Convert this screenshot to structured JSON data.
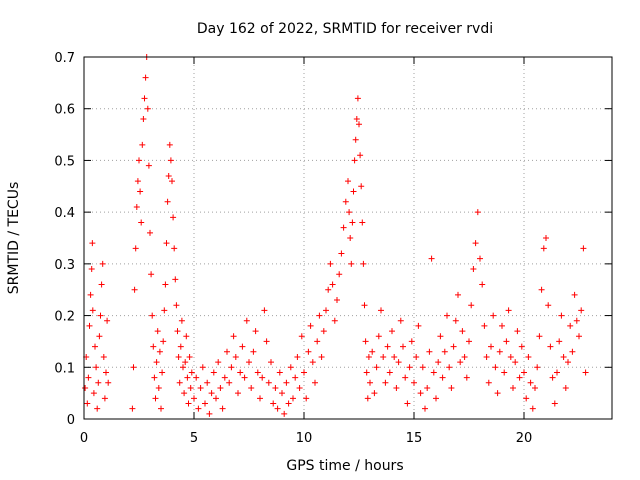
{
  "chart_data": {
    "type": "scatter",
    "title": "Day 162 of 2022, SRMTID for receiver rvdi",
    "xlabel": "GPS time / hours",
    "ylabel": "SRMTID / TECUs",
    "xlim": [
      0,
      24
    ],
    "ylim": [
      0,
      0.7
    ],
    "xticks": [
      0,
      5,
      10,
      15,
      20
    ],
    "xtick_labels": [
      "0",
      "5",
      "10",
      "15",
      "20"
    ],
    "yticks": [
      0,
      0.1,
      0.2,
      0.3,
      0.4,
      0.5,
      0.6,
      0.7
    ],
    "ytick_labels": [
      "0",
      "0.1",
      "0.2",
      "0.3",
      "0.4",
      "0.5",
      "0.6",
      "0.7"
    ],
    "grid": true,
    "marker": "+",
    "color": "#ff0000",
    "series": [
      {
        "name": "SRMTID",
        "points": [
          [
            0.05,
            0.06
          ],
          [
            0.1,
            0.12
          ],
          [
            0.15,
            0.03
          ],
          [
            0.2,
            0.08
          ],
          [
            0.25,
            0.18
          ],
          [
            0.3,
            0.24
          ],
          [
            0.35,
            0.29
          ],
          [
            0.38,
            0.34
          ],
          [
            0.4,
            0.21
          ],
          [
            0.45,
            0.05
          ],
          [
            0.5,
            0.14
          ],
          [
            0.55,
            0.1
          ],
          [
            0.6,
            0.02
          ],
          [
            0.65,
            0.07
          ],
          [
            0.7,
            0.16
          ],
          [
            0.75,
            0.2
          ],
          [
            0.8,
            0.26
          ],
          [
            0.85,
            0.3
          ],
          [
            0.9,
            0.12
          ],
          [
            0.95,
            0.04
          ],
          [
            1.0,
            0.09
          ],
          [
            1.05,
            0.19
          ],
          [
            1.1,
            0.07
          ],
          [
            2.2,
            0.02
          ],
          [
            2.25,
            0.1
          ],
          [
            2.3,
            0.25
          ],
          [
            2.35,
            0.33
          ],
          [
            2.4,
            0.41
          ],
          [
            2.45,
            0.46
          ],
          [
            2.5,
            0.5
          ],
          [
            2.55,
            0.44
          ],
          [
            2.6,
            0.38
          ],
          [
            2.65,
            0.53
          ],
          [
            2.7,
            0.58
          ],
          [
            2.75,
            0.62
          ],
          [
            2.8,
            0.66
          ],
          [
            2.85,
            0.7
          ],
          [
            2.9,
            0.6
          ],
          [
            2.95,
            0.49
          ],
          [
            3.0,
            0.36
          ],
          [
            3.05,
            0.28
          ],
          [
            3.1,
            0.2
          ],
          [
            3.15,
            0.14
          ],
          [
            3.2,
            0.08
          ],
          [
            3.25,
            0.04
          ],
          [
            3.3,
            0.11
          ],
          [
            3.35,
            0.17
          ],
          [
            3.4,
            0.06
          ],
          [
            3.45,
            0.13
          ],
          [
            3.5,
            0.02
          ],
          [
            3.55,
            0.09
          ],
          [
            3.6,
            0.15
          ],
          [
            3.65,
            0.21
          ],
          [
            3.7,
            0.26
          ],
          [
            3.75,
            0.34
          ],
          [
            3.8,
            0.42
          ],
          [
            3.85,
            0.47
          ],
          [
            3.9,
            0.53
          ],
          [
            3.95,
            0.5
          ],
          [
            4.0,
            0.46
          ],
          [
            4.05,
            0.39
          ],
          [
            4.1,
            0.33
          ],
          [
            4.15,
            0.27
          ],
          [
            4.2,
            0.22
          ],
          [
            4.25,
            0.17
          ],
          [
            4.3,
            0.12
          ],
          [
            4.35,
            0.07
          ],
          [
            4.4,
            0.14
          ],
          [
            4.45,
            0.19
          ],
          [
            4.5,
            0.1
          ],
          [
            4.55,
            0.05
          ],
          [
            4.6,
            0.11
          ],
          [
            4.65,
            0.16
          ],
          [
            4.7,
            0.08
          ],
          [
            4.75,
            0.03
          ],
          [
            4.8,
            0.12
          ],
          [
            4.85,
            0.06
          ],
          [
            4.9,
            0.09
          ],
          [
            5.0,
            0.04
          ],
          [
            5.1,
            0.08
          ],
          [
            5.2,
            0.02
          ],
          [
            5.3,
            0.06
          ],
          [
            5.4,
            0.1
          ],
          [
            5.5,
            0.03
          ],
          [
            5.6,
            0.07
          ],
          [
            5.7,
            0.01
          ],
          [
            5.8,
            0.05
          ],
          [
            5.9,
            0.09
          ],
          [
            6.0,
            0.04
          ],
          [
            6.1,
            0.11
          ],
          [
            6.2,
            0.06
          ],
          [
            6.3,
            0.02
          ],
          [
            6.4,
            0.08
          ],
          [
            6.5,
            0.13
          ],
          [
            6.6,
            0.07
          ],
          [
            6.7,
            0.1
          ],
          [
            6.8,
            0.16
          ],
          [
            6.9,
            0.12
          ],
          [
            7.0,
            0.05
          ],
          [
            7.1,
            0.09
          ],
          [
            7.2,
            0.14
          ],
          [
            7.3,
            0.08
          ],
          [
            7.4,
            0.19
          ],
          [
            7.5,
            0.11
          ],
          [
            7.6,
            0.06
          ],
          [
            7.7,
            0.13
          ],
          [
            7.8,
            0.17
          ],
          [
            7.9,
            0.09
          ],
          [
            8.0,
            0.04
          ],
          [
            8.1,
            0.08
          ],
          [
            8.2,
            0.21
          ],
          [
            8.3,
            0.15
          ],
          [
            8.4,
            0.07
          ],
          [
            8.5,
            0.11
          ],
          [
            8.6,
            0.03
          ],
          [
            8.7,
            0.06
          ],
          [
            8.8,
            0.02
          ],
          [
            8.9,
            0.09
          ],
          [
            9.0,
            0.05
          ],
          [
            9.1,
            0.01
          ],
          [
            9.2,
            0.07
          ],
          [
            9.3,
            0.03
          ],
          [
            9.4,
            0.1
          ],
          [
            9.5,
            0.04
          ],
          [
            9.6,
            0.08
          ],
          [
            9.7,
            0.12
          ],
          [
            9.8,
            0.06
          ],
          [
            9.9,
            0.16
          ],
          [
            10.0,
            0.09
          ],
          [
            10.1,
            0.04
          ],
          [
            10.2,
            0.13
          ],
          [
            10.3,
            0.18
          ],
          [
            10.4,
            0.11
          ],
          [
            10.5,
            0.07
          ],
          [
            10.6,
            0.15
          ],
          [
            10.7,
            0.2
          ],
          [
            10.8,
            0.12
          ],
          [
            10.9,
            0.17
          ],
          [
            11.0,
            0.21
          ],
          [
            11.1,
            0.25
          ],
          [
            11.2,
            0.3
          ],
          [
            11.3,
            0.26
          ],
          [
            11.4,
            0.19
          ],
          [
            11.5,
            0.23
          ],
          [
            11.6,
            0.28
          ],
          [
            11.7,
            0.32
          ],
          [
            11.8,
            0.37
          ],
          [
            11.9,
            0.42
          ],
          [
            12.0,
            0.46
          ],
          [
            12.05,
            0.4
          ],
          [
            12.1,
            0.35
          ],
          [
            12.15,
            0.3
          ],
          [
            12.2,
            0.38
          ],
          [
            12.25,
            0.44
          ],
          [
            12.3,
            0.5
          ],
          [
            12.35,
            0.54
          ],
          [
            12.4,
            0.58
          ],
          [
            12.45,
            0.62
          ],
          [
            12.5,
            0.57
          ],
          [
            12.55,
            0.51
          ],
          [
            12.6,
            0.45
          ],
          [
            12.65,
            0.38
          ],
          [
            12.7,
            0.3
          ],
          [
            12.75,
            0.22
          ],
          [
            12.8,
            0.15
          ],
          [
            12.85,
            0.09
          ],
          [
            12.9,
            0.04
          ],
          [
            12.95,
            0.12
          ],
          [
            13.0,
            0.07
          ],
          [
            13.1,
            0.13
          ],
          [
            13.2,
            0.05
          ],
          [
            13.3,
            0.1
          ],
          [
            13.4,
            0.16
          ],
          [
            13.5,
            0.21
          ],
          [
            13.6,
            0.12
          ],
          [
            13.7,
            0.07
          ],
          [
            13.8,
            0.14
          ],
          [
            13.9,
            0.09
          ],
          [
            14.0,
            0.17
          ],
          [
            14.1,
            0.12
          ],
          [
            14.2,
            0.06
          ],
          [
            14.3,
            0.11
          ],
          [
            14.4,
            0.19
          ],
          [
            14.5,
            0.14
          ],
          [
            14.6,
            0.08
          ],
          [
            14.7,
            0.03
          ],
          [
            14.8,
            0.1
          ],
          [
            14.9,
            0.15
          ],
          [
            15.0,
            0.07
          ],
          [
            15.1,
            0.12
          ],
          [
            15.2,
            0.18
          ],
          [
            15.3,
            0.05
          ],
          [
            15.4,
            0.1
          ],
          [
            15.5,
            0.02
          ],
          [
            15.6,
            0.06
          ],
          [
            15.7,
            0.13
          ],
          [
            15.8,
            0.31
          ],
          [
            15.9,
            0.09
          ],
          [
            16.0,
            0.04
          ],
          [
            16.1,
            0.11
          ],
          [
            16.2,
            0.16
          ],
          [
            16.3,
            0.08
          ],
          [
            16.4,
            0.13
          ],
          [
            16.5,
            0.2
          ],
          [
            16.6,
            0.1
          ],
          [
            16.7,
            0.06
          ],
          [
            16.8,
            0.14
          ],
          [
            16.9,
            0.19
          ],
          [
            17.0,
            0.24
          ],
          [
            17.1,
            0.11
          ],
          [
            17.2,
            0.17
          ],
          [
            17.3,
            0.12
          ],
          [
            17.4,
            0.08
          ],
          [
            17.5,
            0.15
          ],
          [
            17.6,
            0.22
          ],
          [
            17.7,
            0.29
          ],
          [
            17.8,
            0.34
          ],
          [
            17.9,
            0.4
          ],
          [
            18.0,
            0.31
          ],
          [
            18.1,
            0.26
          ],
          [
            18.2,
            0.18
          ],
          [
            18.3,
            0.12
          ],
          [
            18.4,
            0.07
          ],
          [
            18.5,
            0.14
          ],
          [
            18.6,
            0.2
          ],
          [
            18.7,
            0.1
          ],
          [
            18.8,
            0.05
          ],
          [
            18.9,
            0.13
          ],
          [
            19.0,
            0.18
          ],
          [
            19.1,
            0.09
          ],
          [
            19.2,
            0.15
          ],
          [
            19.3,
            0.21
          ],
          [
            19.4,
            0.12
          ],
          [
            19.5,
            0.06
          ],
          [
            19.6,
            0.11
          ],
          [
            19.7,
            0.17
          ],
          [
            19.8,
            0.08
          ],
          [
            19.9,
            0.14
          ],
          [
            20.0,
            0.09
          ],
          [
            20.1,
            0.04
          ],
          [
            20.2,
            0.12
          ],
          [
            20.3,
            0.07
          ],
          [
            20.4,
            0.02
          ],
          [
            20.5,
            0.06
          ],
          [
            20.6,
            0.1
          ],
          [
            20.7,
            0.16
          ],
          [
            20.8,
            0.25
          ],
          [
            20.9,
            0.33
          ],
          [
            21.0,
            0.35
          ],
          [
            21.1,
            0.22
          ],
          [
            21.2,
            0.14
          ],
          [
            21.3,
            0.08
          ],
          [
            21.4,
            0.03
          ],
          [
            21.5,
            0.09
          ],
          [
            21.6,
            0.15
          ],
          [
            21.7,
            0.2
          ],
          [
            21.8,
            0.12
          ],
          [
            21.9,
            0.06
          ],
          [
            22.0,
            0.11
          ],
          [
            22.1,
            0.18
          ],
          [
            22.2,
            0.13
          ],
          [
            22.3,
            0.24
          ],
          [
            22.4,
            0.19
          ],
          [
            22.5,
            0.16
          ],
          [
            22.6,
            0.21
          ],
          [
            22.7,
            0.33
          ],
          [
            22.8,
            0.09
          ]
        ]
      }
    ]
  }
}
